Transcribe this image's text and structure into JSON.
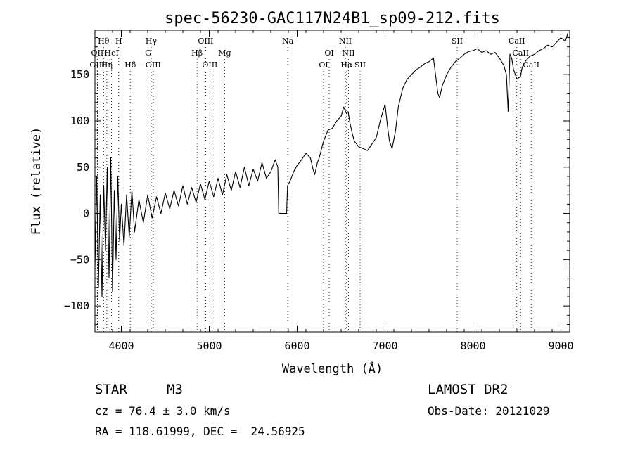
{
  "chart_data": {
    "type": "line",
    "title": "spec-56230-GAC117N24B1_sp09-212.fits",
    "xlabel": "Wavelength (Å)",
    "ylabel": "Flux (relative)",
    "xlim": [
      3700,
      9100
    ],
    "ylim": [
      -128,
      198
    ],
    "x_ticks": [
      4000,
      5000,
      6000,
      7000,
      8000,
      9000
    ],
    "y_ticks": [
      -100,
      -50,
      0,
      50,
      100,
      150
    ],
    "grid": false,
    "line_color": "#000000",
    "spectrum_x": [
      3700,
      3720,
      3740,
      3760,
      3780,
      3800,
      3820,
      3840,
      3860,
      3880,
      3900,
      3920,
      3940,
      3960,
      3980,
      4000,
      4030,
      4060,
      4090,
      4120,
      4150,
      4200,
      4250,
      4300,
      4350,
      4400,
      4450,
      4500,
      4550,
      4600,
      4650,
      4700,
      4750,
      4800,
      4850,
      4900,
      4950,
      5000,
      5050,
      5100,
      5150,
      5200,
      5250,
      5300,
      5350,
      5400,
      5450,
      5500,
      5550,
      5600,
      5650,
      5700,
      5750,
      5780,
      5790,
      5800,
      5850,
      5880,
      5890,
      5920,
      5960,
      6000,
      6050,
      6100,
      6150,
      6180,
      6200,
      6230,
      6250,
      6300,
      6350,
      6400,
      6450,
      6500,
      6530,
      6560,
      6580,
      6600,
      6630,
      6650,
      6700,
      6750,
      6800,
      6850,
      6900,
      6950,
      7000,
      7030,
      7050,
      7080,
      7120,
      7150,
      7200,
      7250,
      7300,
      7350,
      7400,
      7450,
      7500,
      7550,
      7600,
      7620,
      7650,
      7700,
      7750,
      7800,
      7850,
      7900,
      7950,
      8000,
      8050,
      8100,
      8150,
      8200,
      8250,
      8300,
      8350,
      8380,
      8400,
      8420,
      8440,
      8460,
      8500,
      8540,
      8560,
      8600,
      8650,
      8700,
      8750,
      8800,
      8850,
      8900,
      8950,
      9000,
      9050,
      9080
    ],
    "spectrum_y": [
      -60,
      40,
      -80,
      20,
      -90,
      30,
      -40,
      50,
      -70,
      60,
      -85,
      25,
      -50,
      40,
      -30,
      10,
      -35,
      20,
      -25,
      25,
      -20,
      15,
      -10,
      20,
      -5,
      18,
      0,
      22,
      5,
      25,
      8,
      30,
      10,
      28,
      12,
      32,
      15,
      35,
      18,
      38,
      20,
      42,
      25,
      45,
      28,
      50,
      30,
      48,
      35,
      55,
      38,
      45,
      58,
      50,
      0,
      0,
      0,
      0,
      30,
      35,
      45,
      52,
      58,
      65,
      60,
      48,
      42,
      55,
      60,
      78,
      90,
      92,
      100,
      105,
      115,
      108,
      110,
      98,
      85,
      78,
      72,
      70,
      68,
      75,
      82,
      102,
      118,
      92,
      78,
      70,
      90,
      115,
      135,
      145,
      150,
      155,
      158,
      162,
      164,
      168,
      130,
      125,
      138,
      150,
      158,
      164,
      168,
      172,
      175,
      176,
      178,
      174,
      176,
      172,
      174,
      168,
      160,
      150,
      110,
      172,
      168,
      156,
      145,
      148,
      158,
      165,
      170,
      172,
      176,
      178,
      182,
      180,
      185,
      190,
      186,
      195
    ],
    "lines": [
      {
        "label": "Hθ",
        "x": 3798,
        "row": 0
      },
      {
        "label": "H",
        "x": 3970,
        "row": 0
      },
      {
        "label": "Hγ",
        "x": 4340,
        "row": 0
      },
      {
        "label": "OIII",
        "x": 4959,
        "row": 0
      },
      {
        "label": "Na",
        "x": 5893,
        "row": 0
      },
      {
        "label": "NII",
        "x": 6548,
        "row": 0
      },
      {
        "label": "SII",
        "x": 7820,
        "row": 0
      },
      {
        "label": "CaII",
        "x": 8498,
        "row": 0
      },
      {
        "label": "OII",
        "x": 3727,
        "row": 1
      },
      {
        "label": "HeI",
        "x": 3889,
        "row": 1
      },
      {
        "label": "G",
        "x": 4304,
        "row": 1
      },
      {
        "label": "Hβ",
        "x": 4861,
        "row": 1
      },
      {
        "label": "Mg",
        "x": 5175,
        "row": 1
      },
      {
        "label": "OI",
        "x": 6364,
        "row": 1
      },
      {
        "label": "NII",
        "x": 6584,
        "row": 1
      },
      {
        "label": "CaII",
        "x": 8542,
        "row": 1
      },
      {
        "label": "OIII",
        "x": 3727,
        "row": 2
      },
      {
        "label": "Hη",
        "x": 3835,
        "row": 2
      },
      {
        "label": "Hδ",
        "x": 4102,
        "row": 2
      },
      {
        "label": "OIII",
        "x": 4363,
        "row": 2
      },
      {
        "label": "OIII",
        "x": 5007,
        "row": 2
      },
      {
        "label": "OI",
        "x": 6300,
        "row": 2
      },
      {
        "label": "Hα",
        "x": 6563,
        "row": 2
      },
      {
        "label": "SII",
        "x": 6716,
        "row": 2
      },
      {
        "label": "CaII",
        "x": 8662,
        "row": 2
      }
    ]
  },
  "footer": {
    "object_type": "STAR",
    "subclass": "M3",
    "survey": "LAMOST DR2",
    "cz": "cz = 76.4 ± 3.0 km/s",
    "obs_date": "Obs-Date: 20121029",
    "coords": "RA = 118.61999, DEC =  24.56925"
  }
}
